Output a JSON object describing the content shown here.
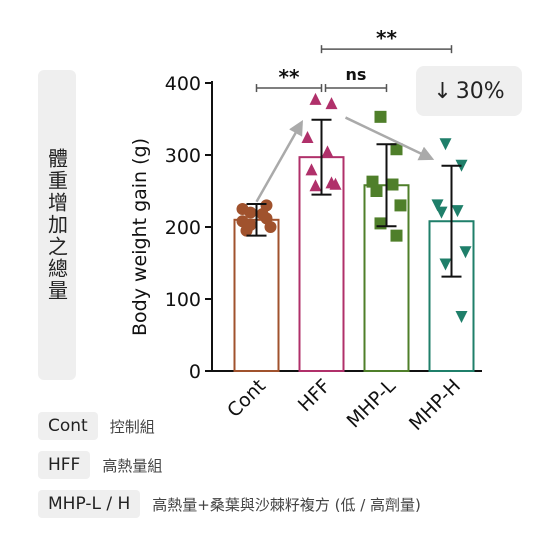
{
  "side_label": "體重增加之總量",
  "badge": {
    "arrow": "↓",
    "text": "30%"
  },
  "legend": [
    {
      "key": "Cont",
      "desc": "控制組"
    },
    {
      "key": "HFF",
      "desc": "高熱量組"
    },
    {
      "key": "MHP-L / H",
      "desc": "高熱量+桑葉與沙棘籽複方 (低 / 高劑量)"
    }
  ],
  "chart_data": {
    "type": "bar",
    "ylabel": "Body weight gain (g)",
    "ylim": [
      0,
      400
    ],
    "yticks": [
      0,
      100,
      200,
      300,
      400
    ],
    "categories": [
      "Cont",
      "HFF",
      "MHP-L",
      "MHP-H"
    ],
    "values": [
      210,
      297,
      258,
      208
    ],
    "errors": [
      22,
      52,
      57,
      77
    ],
    "colors": [
      "#a0522d",
      "#b0306a",
      "#4f7f2a",
      "#1f7f6a"
    ],
    "markers": [
      "circle",
      "triangle-up",
      "square",
      "triangle-down"
    ],
    "points": [
      [
        220,
        212,
        208,
        218,
        195,
        200,
        203,
        230,
        225
      ],
      [
        378,
        372,
        325,
        305,
        280,
        260,
        258,
        262
      ],
      [
        353,
        308,
        263,
        259,
        250,
        230,
        205,
        188
      ],
      [
        315,
        285,
        230,
        222,
        220,
        165,
        148,
        75
      ]
    ],
    "annotations": [
      {
        "from": 0,
        "to": 1,
        "label": "**"
      },
      {
        "from": 1,
        "to": 2,
        "label": "ns"
      },
      {
        "from": 1,
        "to": 3,
        "label": "**"
      }
    ]
  }
}
